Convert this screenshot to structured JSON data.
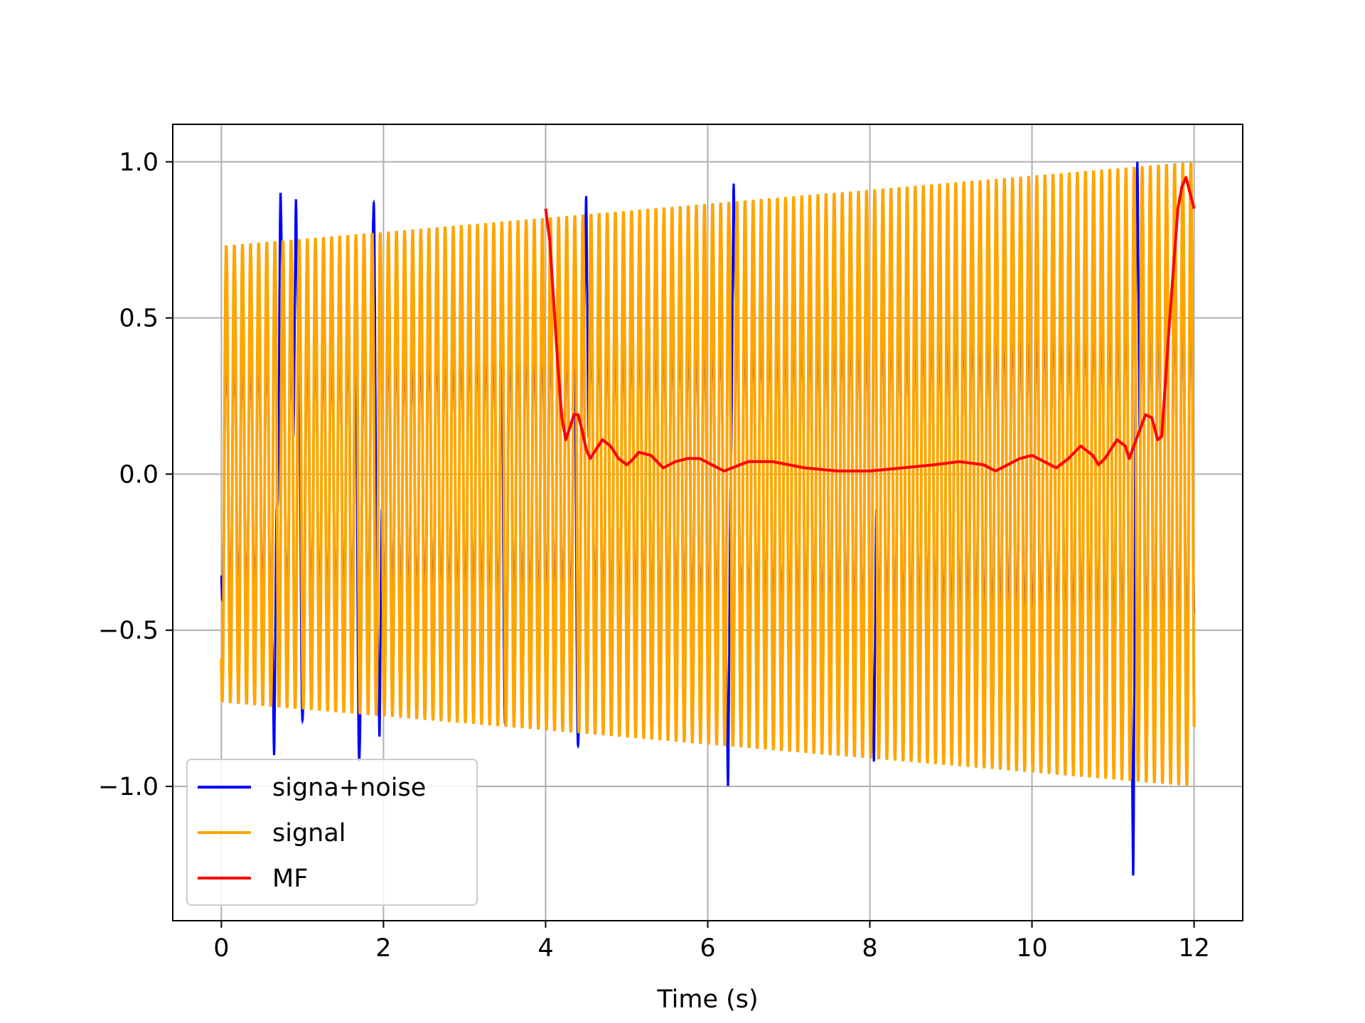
{
  "chart_data": {
    "type": "line",
    "title": "",
    "xlabel": "Time (s)",
    "ylabel": "",
    "xlim": [
      -0.6,
      12.6
    ],
    "ylim": [
      -1.43,
      1.12
    ],
    "xticks": [
      0,
      2,
      4,
      6,
      8,
      10,
      12
    ],
    "xtick_labels": [
      "0",
      "2",
      "4",
      "6",
      "8",
      "10",
      "12"
    ],
    "yticks": [
      -1.0,
      -0.5,
      0.0,
      0.5,
      1.0
    ],
    "ytick_labels": [
      "−1.0",
      "−0.5",
      "0.0",
      "0.5",
      "1.0"
    ],
    "grid": true,
    "legend_position": "lower-left",
    "series": [
      {
        "name": "signa+noise",
        "color": "#0000ff",
        "description_points": {
          "t_start": 0.0,
          "t_end": 12.0,
          "oscillation_cycles": 120,
          "envelope_start": 0.73,
          "envelope_end": 1.0,
          "noise_spikes": [
            {
              "t": 0.65,
              "v": -0.9
            },
            {
              "t": 0.73,
              "v": 0.9
            },
            {
              "t": 0.92,
              "v": 0.88
            },
            {
              "t": 1.0,
              "v": -0.79
            },
            {
              "t": 1.7,
              "v": -0.92
            },
            {
              "t": 1.88,
              "v": 0.87
            },
            {
              "t": 1.95,
              "v": -0.84
            },
            {
              "t": 3.5,
              "v": -0.8
            },
            {
              "t": 4.4,
              "v": -0.87
            },
            {
              "t": 4.5,
              "v": 0.89
            },
            {
              "t": 6.25,
              "v": -1.0
            },
            {
              "t": 6.32,
              "v": 0.93
            },
            {
              "t": 8.05,
              "v": -0.92
            },
            {
              "t": 11.25,
              "v": -1.33
            },
            {
              "t": 11.3,
              "v": 1.0
            }
          ]
        }
      },
      {
        "name": "signal",
        "color": "#ffa500",
        "description_points": {
          "t_start": 0.0,
          "t_end": 12.0,
          "oscillation_cycles": 120,
          "envelope_start": 0.73,
          "envelope_end": 1.0
        }
      },
      {
        "name": "MF",
        "color": "#ff0000",
        "x": [
          4.0,
          4.05,
          4.1,
          4.15,
          4.2,
          4.25,
          4.3,
          4.35,
          4.4,
          4.45,
          4.5,
          4.55,
          4.6,
          4.7,
          4.8,
          4.9,
          5.0,
          5.05,
          5.15,
          5.3,
          5.45,
          5.6,
          5.75,
          5.9,
          6.05,
          6.2,
          6.3,
          6.5,
          6.8,
          7.2,
          7.6,
          8.0,
          8.4,
          8.8,
          9.1,
          9.4,
          9.55,
          9.7,
          9.85,
          10.0,
          10.15,
          10.3,
          10.45,
          10.6,
          10.75,
          10.82,
          10.9,
          11.05,
          11.15,
          11.2,
          11.3,
          11.4,
          11.48,
          11.55,
          11.6,
          11.7,
          11.8,
          11.85,
          11.9,
          11.95,
          12.0
        ],
        "y": [
          0.85,
          0.75,
          0.55,
          0.35,
          0.18,
          0.11,
          0.15,
          0.19,
          0.19,
          0.14,
          0.08,
          0.05,
          0.07,
          0.11,
          0.09,
          0.05,
          0.03,
          0.04,
          0.07,
          0.06,
          0.02,
          0.04,
          0.05,
          0.05,
          0.03,
          0.01,
          0.02,
          0.04,
          0.04,
          0.02,
          0.01,
          0.01,
          0.02,
          0.03,
          0.04,
          0.03,
          0.01,
          0.03,
          0.05,
          0.06,
          0.04,
          0.02,
          0.05,
          0.09,
          0.06,
          0.03,
          0.05,
          0.11,
          0.09,
          0.05,
          0.12,
          0.19,
          0.18,
          0.11,
          0.12,
          0.5,
          0.85,
          0.92,
          0.95,
          0.9,
          0.85
        ]
      }
    ]
  }
}
